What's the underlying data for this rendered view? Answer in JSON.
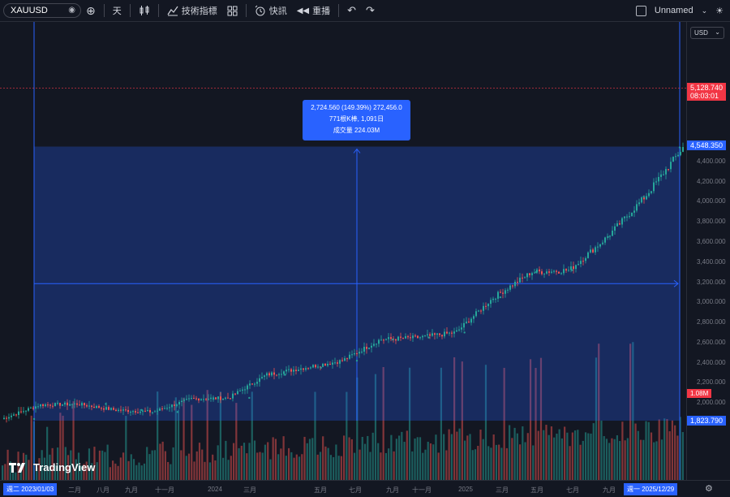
{
  "toolbar": {
    "symbol": "XAUUSD",
    "interval": "天",
    "indicators_label": "技術指標",
    "alert_label": "快訊",
    "replay_label": "重播",
    "layout_name": "Unnamed"
  },
  "axis": {
    "currency": "USD",
    "price_labels": [
      "4,400.000",
      "4,200.000",
      "4,000.000",
      "3,800.000",
      "3,600.000",
      "3,400.000",
      "3,200.000",
      "3,000.000",
      "2,800.000",
      "2,600.000",
      "2,400.000",
      "2,200.000",
      "2,000.000"
    ],
    "current_price": "5,128.740",
    "countdown": "08:03:01",
    "upper_price": "4,548.350",
    "lower_price": "1,823.790",
    "volume_label": "1.08M",
    "time_labels": [
      "二月",
      "八月",
      "九月",
      "十一月",
      "2024",
      "三月",
      "五月",
      "七月",
      "九月",
      "十一月",
      "2025",
      "三月",
      "五月",
      "七月",
      "九月"
    ],
    "start_date": "週二 2023/01/03",
    "end_date": "週一 2025/12/29"
  },
  "measure": {
    "line1": "2,724.560 (149.39%) 272,456.0",
    "line2": "771根K棒, 1,091日",
    "line3": "成交量 224.03M"
  },
  "brand": "TradingView",
  "colors": {
    "up": "#26a69a",
    "down": "#ef5350",
    "accent": "#2962ff"
  },
  "chart_data": {
    "type": "line",
    "start_price": 1823.79,
    "end_price": 4548.35,
    "x": [
      "2023-01",
      "2023-03",
      "2023-05",
      "2023-07",
      "2023-09",
      "2023-11",
      "2024-01",
      "2024-03",
      "2024-05",
      "2024-07",
      "2024-09",
      "2024-11",
      "2025-01",
      "2025-03",
      "2025-05",
      "2025-07",
      "2025-09",
      "2025-11",
      "2025-12"
    ],
    "series": [
      {
        "values": [
          1840,
          1980,
          1990,
          1930,
          1910,
          2040,
          2050,
          2280,
          2350,
          2420,
          2630,
          2650,
          2700,
          3050,
          3300,
          3320,
          3650,
          4050,
          4540
        ]
      }
    ],
    "ylim": [
      1700,
      5200
    ]
  }
}
